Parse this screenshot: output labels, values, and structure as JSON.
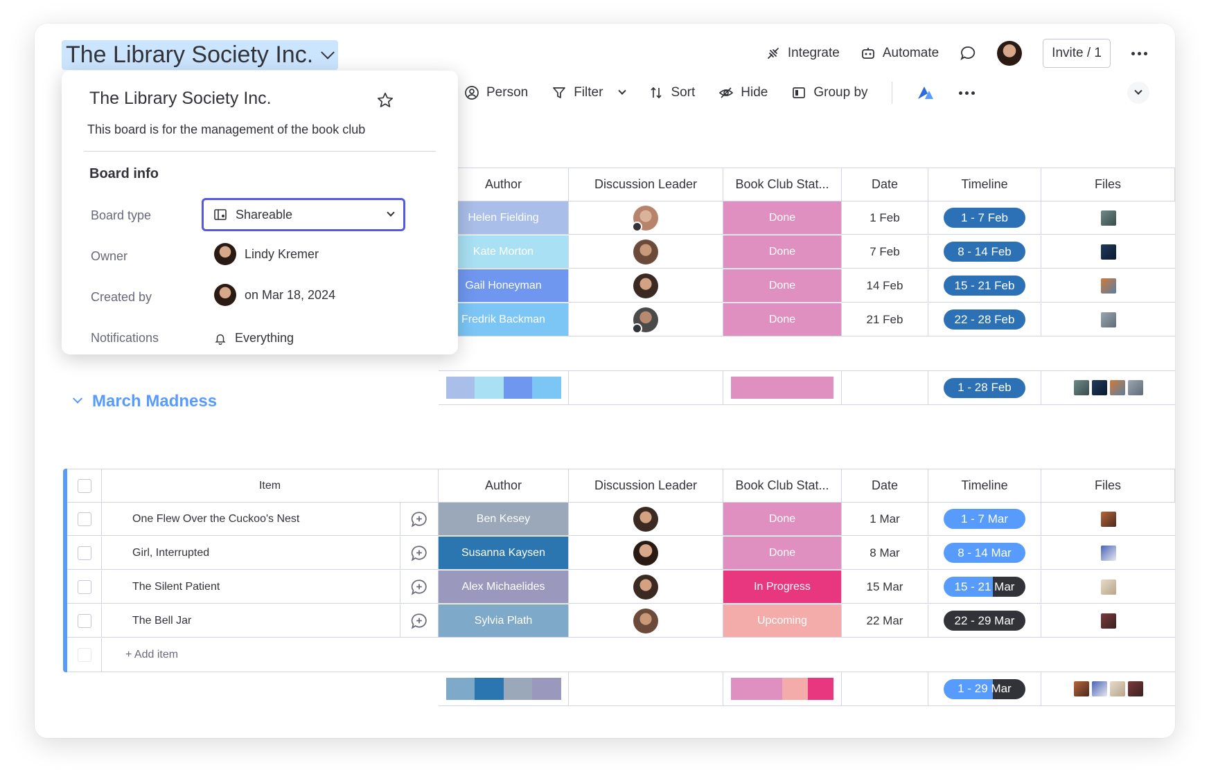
{
  "board": {
    "title": "The Library Society Inc."
  },
  "top_actions": {
    "integrate": "Integrate",
    "automate": "Automate",
    "invite": "Invite / 1"
  },
  "toolbar": {
    "person": "Person",
    "filter": "Filter",
    "sort": "Sort",
    "hide": "Hide",
    "group_by": "Group by"
  },
  "columns": {
    "item": "Item",
    "author": "Author",
    "discussion_leader": "Discussion Leader",
    "status": "Book Club Stat...",
    "date": "Date",
    "timeline": "Timeline",
    "files": "Files"
  },
  "group1": {
    "rows": [
      {
        "author": "Helen Fielding",
        "author_color": "#a9bee8",
        "status": "Done",
        "status_color": "#df8fc0",
        "date": "1 Feb",
        "timeline": "1 - 7 Feb",
        "timeline_color": "#2c70b5"
      },
      {
        "author": "Kate Morton",
        "author_color": "#a9e0f4",
        "status": "Done",
        "status_color": "#df8fc0",
        "date": "7 Feb",
        "timeline": "8 - 14 Feb",
        "timeline_color": "#2c70b5"
      },
      {
        "author": "Gail Honeyman",
        "author_color": "#6f97f0",
        "status": "Done",
        "status_color": "#df8fc0",
        "date": "14 Feb",
        "timeline": "15 - 21 Feb",
        "timeline_color": "#2c70b5"
      },
      {
        "author": "Fredrik Backman",
        "author_color": "#7cc6f6",
        "status": "Done",
        "status_color": "#df8fc0",
        "date": "21 Feb",
        "timeline": "22 - 28 Feb",
        "timeline_color": "#2c70b5"
      }
    ],
    "summary_timeline": "1 - 28 Feb"
  },
  "group2": {
    "title": "March Madness",
    "rows": [
      {
        "item": "One Flew Over the Cuckoo's Nest",
        "author": "Ben Kesey",
        "author_color": "#9aa8b9",
        "status": "Done",
        "status_color": "#df8fc0",
        "date": "1 Mar",
        "timeline": "1 - 7 Mar",
        "timeline_color": "#579bfc"
      },
      {
        "item": "Girl, Interrupted",
        "author": "Susanna Kaysen",
        "author_color": "#2b76b0",
        "status": "Done",
        "status_color": "#df8fc0",
        "date": "8 Mar",
        "timeline": "8 - 14 Mar",
        "timeline_color": "#579bfc"
      },
      {
        "item": "The Silent Patient",
        "author": "Alex Michaelides",
        "author_color": "#9a98bd",
        "status": "In Progress",
        "status_color": "#e8377f",
        "date": "15 Mar",
        "timeline": "15 - 21 Mar",
        "timeline_color": "#579bfc"
      },
      {
        "item": "The Bell Jar",
        "author": "Sylvia Plath",
        "author_color": "#7ea9c8",
        "status": "Upcoming",
        "status_color": "#f4acab",
        "date": "22 Mar",
        "timeline": "22 - 29 Mar",
        "timeline_color": "#323338"
      }
    ],
    "add_item": "+ Add item",
    "summary_timeline": "1 - 29 Mar"
  },
  "popover": {
    "title": "The Library Society Inc.",
    "description": "This board is for the management of the book club",
    "section": "Board info",
    "board_type_label": "Board type",
    "board_type_value": "Shareable",
    "owner_label": "Owner",
    "owner_value": "Lindy Kremer",
    "created_label": "Created by",
    "created_value": "on Mar 18, 2024",
    "notifications_label": "Notifications",
    "notifications_value": "Everything"
  }
}
